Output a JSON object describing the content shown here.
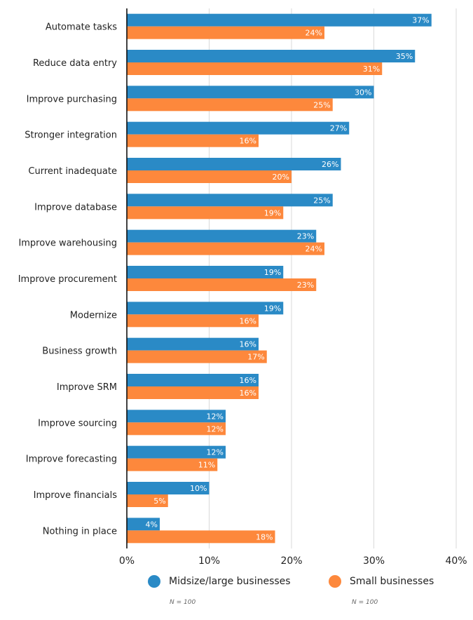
{
  "chart_data": {
    "type": "bar",
    "orientation": "horizontal",
    "title": "",
    "xlabel": "",
    "ylabel": "",
    "xlim": [
      0,
      40
    ],
    "x_ticks": [
      "0%",
      "10%",
      "20%",
      "30%",
      "40%"
    ],
    "x_tick_values": [
      0,
      10,
      20,
      30,
      40
    ],
    "grid": "vertical",
    "legend_position": "bottom",
    "categories": [
      "Automate tasks",
      "Reduce data entry",
      "Improve purchasing",
      "Stronger integration",
      "Current inadequate",
      "Improve database",
      "Improve warehousing",
      "Improve procurement",
      "Modernize",
      "Business growth",
      "Improve SRM",
      "Improve sourcing",
      "Improve forecasting",
      "Improve financials",
      "Nothing in place"
    ],
    "series": [
      {
        "name": "Midsize/large businesses",
        "color": "#2a8ac6",
        "n_label": "N = 100",
        "values": [
          37,
          35,
          30,
          27,
          26,
          25,
          23,
          19,
          19,
          16,
          16,
          12,
          12,
          10,
          4
        ]
      },
      {
        "name": "Small businesses",
        "color": "#fd883c",
        "n_label": "N = 100",
        "values": [
          24,
          31,
          25,
          16,
          20,
          19,
          24,
          23,
          16,
          17,
          16,
          12,
          11,
          5,
          18
        ]
      }
    ],
    "value_suffix": "%"
  }
}
